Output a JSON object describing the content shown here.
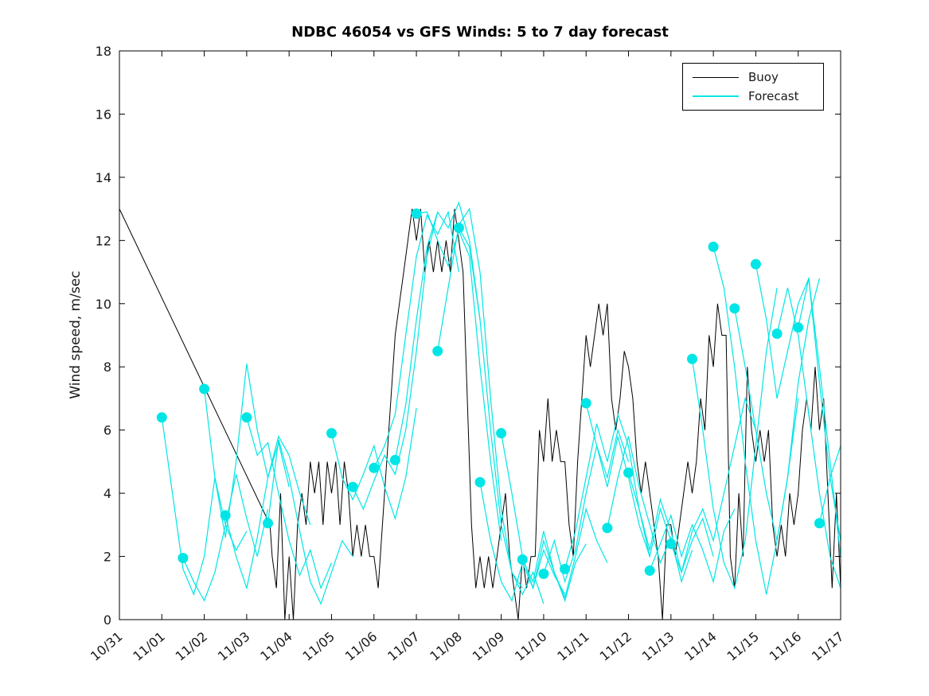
{
  "colors": {
    "buoy": "#000000",
    "forecast": "#00e5e5",
    "axis": "#000000",
    "text": "#1a1a1a",
    "background": "#ffffff"
  },
  "chart_data": {
    "type": "line",
    "title": "NDBC 46054 vs GFS Winds: 5 to 7 day forecast",
    "xlabel": "",
    "ylabel": "Wind speed, m/sec",
    "ylim": [
      0,
      18
    ],
    "xlim_days": [
      0,
      17
    ],
    "grid": false,
    "legend_position": "northeast",
    "ytick_values": [
      0,
      2,
      4,
      6,
      8,
      10,
      12,
      14,
      16,
      18
    ],
    "xtick_labels": [
      "10/31",
      "11/01",
      "11/02",
      "11/03",
      "11/04",
      "11/05",
      "11/06",
      "11/07",
      "11/08",
      "11/09",
      "11/10",
      "11/11",
      "11/12",
      "11/13",
      "11/14",
      "11/15",
      "11/16",
      "11/17"
    ],
    "buoy": {
      "label": "Buoy",
      "pre_gap_point": [
        0,
        13.0
      ],
      "resume_point": [
        3.55,
        3.0
      ],
      "x_start": 3.6,
      "dx": 0.1,
      "values": [
        2,
        1,
        4,
        0,
        2,
        0,
        3,
        4,
        3,
        5,
        4,
        5,
        3,
        5,
        4,
        5,
        3,
        5,
        4,
        2,
        3,
        2,
        3,
        2,
        2,
        1,
        3,
        5,
        7,
        9,
        10,
        11,
        12,
        13,
        12,
        13,
        11,
        12,
        11,
        12,
        11,
        12,
        11,
        13,
        12,
        11,
        7,
        3,
        1,
        2,
        1,
        2,
        1,
        2,
        3,
        4,
        2,
        1,
        0,
        2,
        1,
        2,
        2,
        6,
        5,
        7,
        5,
        6,
        5,
        5,
        3,
        2,
        5,
        7,
        9,
        8,
        9,
        10,
        9,
        10,
        7,
        6,
        7,
        8.5,
        8,
        7,
        5,
        4,
        5,
        4,
        3,
        2,
        0,
        3,
        3,
        2,
        3,
        4,
        5,
        4,
        5,
        7,
        6,
        9,
        8,
        10,
        9,
        9,
        2,
        1,
        4,
        2,
        8,
        6,
        5,
        6,
        5,
        6,
        3,
        2,
        3,
        2,
        4,
        3,
        4,
        6,
        7,
        6,
        8,
        6,
        7,
        4,
        1,
        4,
        1
      ]
    },
    "forecast": {
      "label": "Forecast",
      "dx": 0.25,
      "segments": [
        {
          "x0": 1.0,
          "values": [
            6.4,
            4.0,
            1.6,
            0.8,
            2.0,
            4.5,
            3.0,
            2.2,
            2.8
          ]
        },
        {
          "x0": 1.5,
          "values": [
            1.95,
            1.2,
            0.6,
            1.5,
            3.0,
            4.6,
            3.2,
            2.0,
            3.5
          ]
        },
        {
          "x0": 2.0,
          "values": [
            7.3,
            4.5,
            2.6,
            5.0,
            8.1,
            6.0,
            4.5,
            5.6,
            4.2
          ]
        },
        {
          "x0": 2.5,
          "values": [
            3.3,
            2.0,
            1.0,
            2.6,
            4.5,
            5.8,
            5.2,
            4.0,
            3.0
          ]
        },
        {
          "x0": 3.0,
          "values": [
            6.4,
            5.2,
            5.6,
            4.0,
            2.5,
            1.4,
            2.2,
            1.0,
            1.8
          ]
        },
        {
          "x0": 3.5,
          "values": [
            3.05,
            5.7,
            4.5,
            2.8,
            1.2,
            0.5,
            1.5,
            2.5,
            2.0
          ]
        },
        {
          "x0": 5.0,
          "values": [
            5.9,
            4.5,
            3.8,
            4.6,
            5.5,
            4.2,
            3.2,
            4.5,
            6.7
          ]
        },
        {
          "x0": 5.5,
          "values": [
            4.2,
            3.5,
            4.4,
            5.2,
            4.6,
            6.0,
            8.5,
            11.5,
            12.9
          ]
        },
        {
          "x0": 6.0,
          "values": [
            4.8,
            5.5,
            6.5,
            9.0,
            11.5,
            12.8,
            12.2,
            12.9,
            11.0
          ]
        },
        {
          "x0": 6.5,
          "values": [
            5.05,
            6.8,
            9.5,
            11.8,
            12.9,
            12.4,
            13.2,
            12.0,
            9.5
          ]
        },
        {
          "x0": 7.0,
          "values": [
            12.85,
            12.9,
            12.0,
            11.2,
            12.3,
            11.5,
            8.0,
            5.0,
            2.5
          ]
        },
        {
          "x0": 7.5,
          "values": [
            8.5,
            10.5,
            12.5,
            13.0,
            11.0,
            7.0,
            3.5,
            1.5,
            1.0
          ]
        },
        {
          "x0": 8.0,
          "values": [
            12.4,
            11.8,
            9.5,
            6.0,
            3.0,
            1.5,
            0.8,
            1.5,
            0.5
          ]
        },
        {
          "x0": 8.5,
          "values": [
            4.35,
            2.5,
            1.2,
            0.6,
            1.8,
            1.0,
            2.2,
            1.4,
            0.8
          ]
        },
        {
          "x0": 9.0,
          "values": [
            5.9,
            4.0,
            2.0,
            1.0,
            2.5,
            1.5,
            0.6,
            1.8,
            2.4
          ]
        },
        {
          "x0": 9.5,
          "values": [
            1.9,
            1.2,
            2.8,
            1.5,
            0.7,
            2.0,
            3.5,
            2.5,
            1.8
          ]
        },
        {
          "x0": 10.0,
          "values": [
            1.45,
            2.5,
            1.2,
            2.2,
            4.0,
            5.5,
            4.5,
            6.0,
            5.0
          ]
        },
        {
          "x0": 10.5,
          "values": [
            1.6,
            2.8,
            4.5,
            6.2,
            5.0,
            6.5,
            5.5,
            3.5,
            2.0
          ]
        },
        {
          "x0": 11.0,
          "values": [
            6.85,
            5.5,
            4.2,
            5.8,
            4.5,
            3.0,
            2.0,
            3.5,
            2.5
          ]
        },
        {
          "x0": 11.5,
          "values": [
            2.9,
            4.5,
            5.8,
            4.2,
            3.0,
            1.8,
            2.6,
            1.2,
            2.2
          ]
        },
        {
          "x0": 12.0,
          "values": [
            4.65,
            3.5,
            2.2,
            3.8,
            2.8,
            1.5,
            2.5,
            3.2,
            2.0
          ]
        },
        {
          "x0": 12.5,
          "values": [
            1.55,
            2.4,
            3.3,
            2.0,
            3.0,
            2.2,
            1.2,
            2.8,
            3.5
          ]
        },
        {
          "x0": 13.0,
          "values": [
            2.4,
            1.5,
            2.8,
            3.5,
            2.5,
            4.0,
            5.5,
            7.0,
            6.0
          ]
        },
        {
          "x0": 13.5,
          "values": [
            8.25,
            6.0,
            3.5,
            1.8,
            1.0,
            2.5,
            5.5,
            8.5,
            10.5
          ]
        },
        {
          "x0": 14.0,
          "values": [
            11.8,
            10.5,
            8.0,
            5.0,
            2.5,
            0.8,
            2.5,
            4.5,
            7.0
          ]
        },
        {
          "x0": 14.5,
          "values": [
            9.85,
            8.0,
            6.0,
            4.0,
            2.5,
            4.5,
            7.5,
            9.5,
            10.8
          ]
        },
        {
          "x0": 15.0,
          "values": [
            11.25,
            9.5,
            7.0,
            8.5,
            10.0,
            10.8,
            8.0,
            5.0,
            2.0
          ]
        },
        {
          "x0": 15.5,
          "values": [
            9.05,
            10.5,
            9.0,
            6.5,
            4.0,
            2.0,
            1.0
          ]
        },
        {
          "x0": 16.0,
          "values": [
            9.25,
            10.8,
            7.5,
            4.5,
            2.5
          ]
        },
        {
          "x0": 16.5,
          "values": [
            3.05,
            4.5,
            5.5
          ]
        }
      ]
    }
  }
}
